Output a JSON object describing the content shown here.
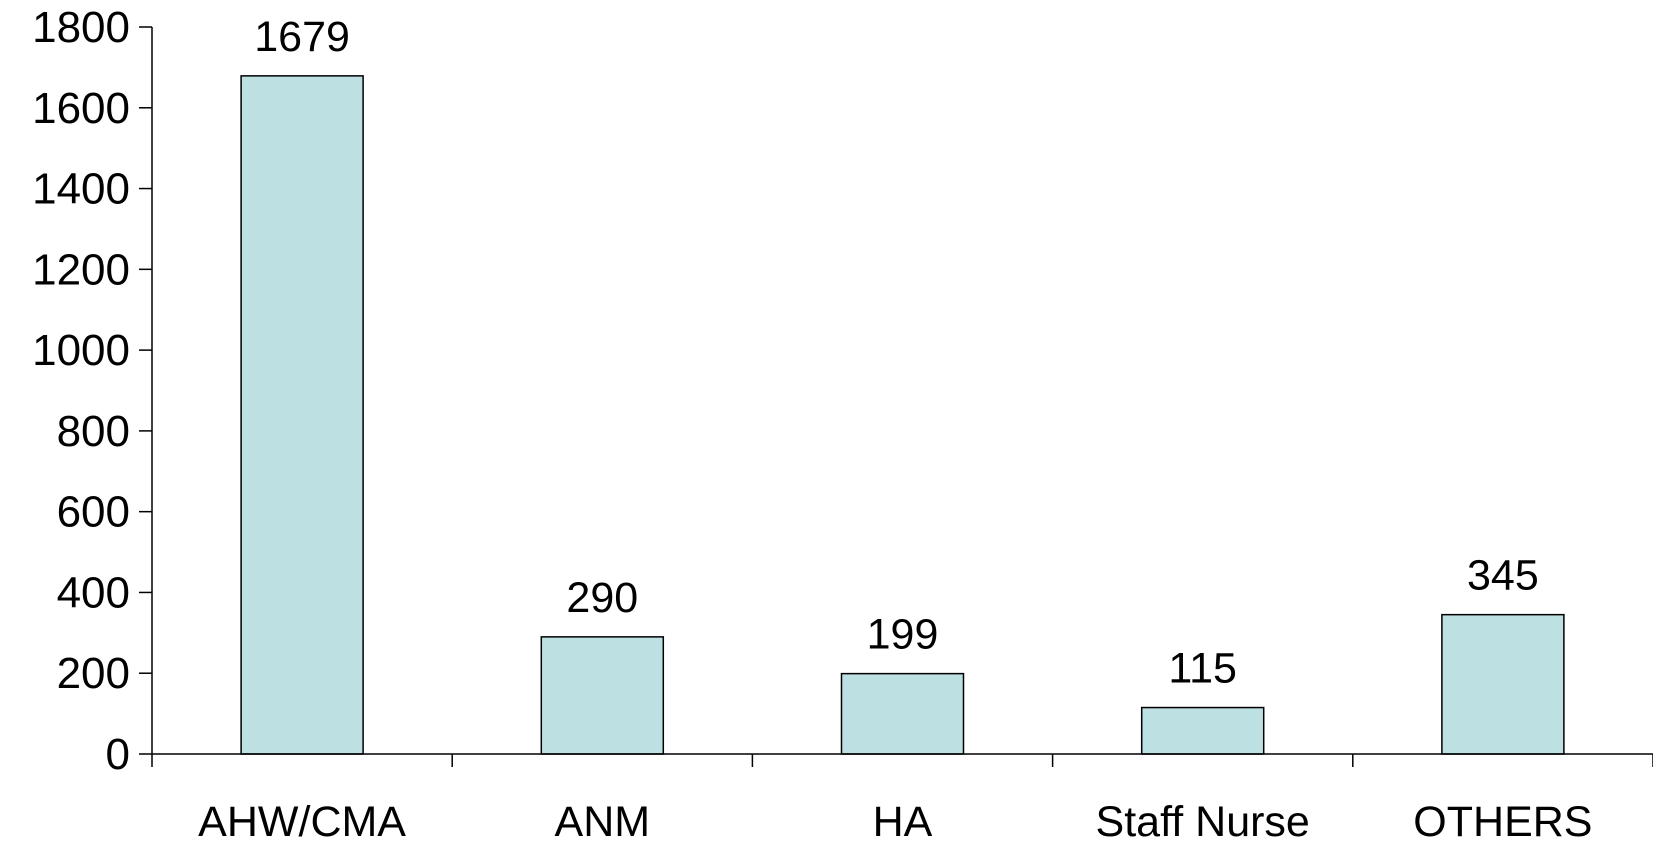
{
  "chart_data": {
    "type": "bar",
    "title": "",
    "xlabel": "",
    "ylabel": "",
    "categories": [
      "AHW/CMA",
      "ANM",
      "HA",
      "Staff Nurse",
      "OTHERS"
    ],
    "values": [
      1679,
      290,
      199,
      115,
      345
    ],
    "data_labels": [
      "1679",
      "290",
      "199",
      "115",
      "345"
    ],
    "ylim": [
      0,
      1800
    ],
    "yticks": [
      0,
      200,
      400,
      600,
      800,
      1000,
      1200,
      1400,
      1600,
      1800
    ],
    "grid": false,
    "legend": "none",
    "colors": {
      "bar_fill": "#bde0e2",
      "bar_stroke": "#000000",
      "axis": "#000000"
    }
  }
}
